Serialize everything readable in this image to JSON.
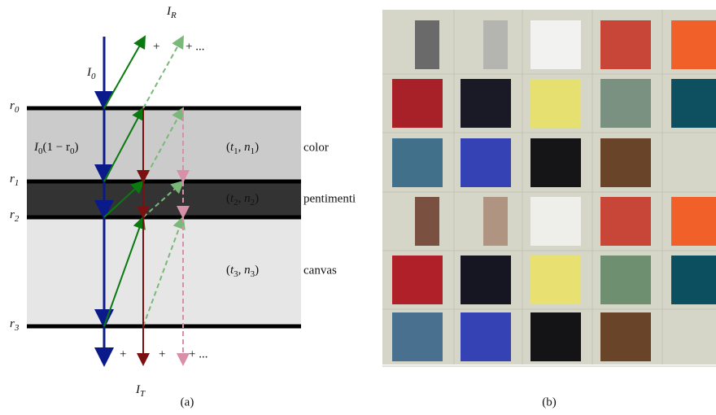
{
  "panel_a": {
    "reflected": {
      "main": "I",
      "sub": "R"
    },
    "incident": {
      "main": "I",
      "sub": "0"
    },
    "transmitted": {
      "main": "I",
      "sub": "T"
    },
    "first_transmitted": {
      "main": "I",
      "sub": "0",
      "rest": "(1 − r",
      "sub2": "0",
      "end": ")"
    },
    "interfaces": [
      {
        "main": "r",
        "sub": "0"
      },
      {
        "main": "r",
        "sub": "1"
      },
      {
        "main": "r",
        "sub": "2"
      },
      {
        "main": "r",
        "sub": "3"
      }
    ],
    "layers": [
      {
        "params": {
          "t": "t",
          "t_sub": "1",
          "n": "n",
          "n_sub": "1"
        },
        "name": "color"
      },
      {
        "params": {
          "t": "t",
          "t_sub": "2",
          "n": "n",
          "n_sub": "2"
        },
        "name": "pentimenti"
      },
      {
        "params": {
          "t": "t",
          "t_sub": "3",
          "n": "n",
          "n_sub": "3"
        },
        "name": "canvas"
      }
    ],
    "plus": "+",
    "plus_more": "+ ...",
    "caption": "(a)"
  },
  "panel_b": {
    "caption": "(b)"
  }
}
